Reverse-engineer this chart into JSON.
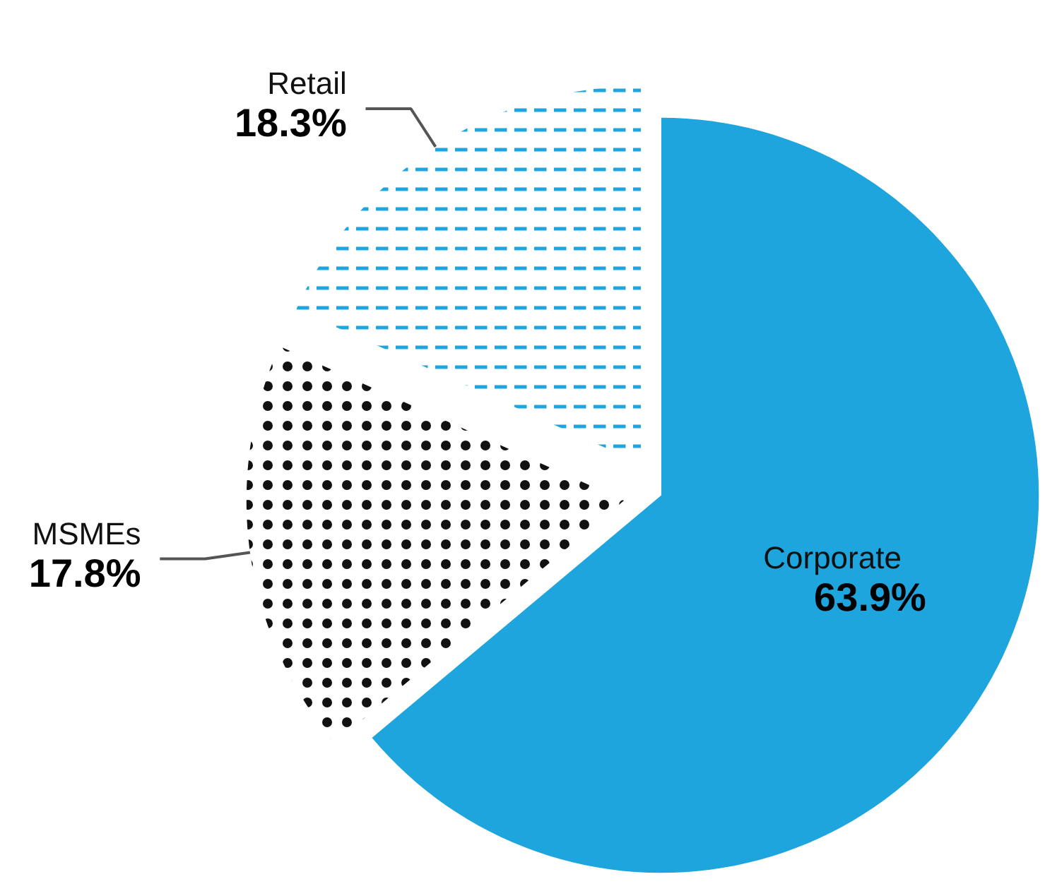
{
  "chart_data": {
    "type": "pie",
    "categories": [
      "Corporate",
      "MSMEs",
      "Retail"
    ],
    "values": [
      63.9,
      17.8,
      18.3
    ],
    "value_labels": [
      "63.9%",
      "17.8%",
      "18.3%"
    ],
    "colors": [
      "#1fa5de",
      "#111111",
      "#1fa5de"
    ]
  }
}
